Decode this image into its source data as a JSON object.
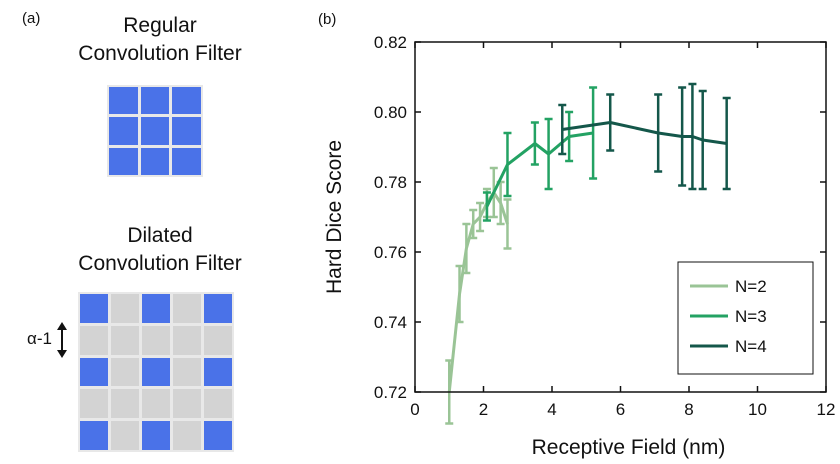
{
  "panel_a": {
    "letter": "(a)",
    "regular_title_1": "Regular",
    "regular_title_2": "Convolution Filter",
    "dilated_title_1": "Dilated",
    "dilated_title_2": "Convolution Filter",
    "alpha_label": "α-1",
    "regular_grid": {
      "rows": 3,
      "cols": 3,
      "pattern": "all-blue"
    },
    "dilated_grid": {
      "rows": 5,
      "cols": 5,
      "pattern": "blue at even rows and even cols"
    }
  },
  "panel_b": {
    "letter": "(b)"
  },
  "colors": {
    "blue_cell": "#4a72e8",
    "gray_cell": "#d3d3d3",
    "N2": "#9ac496",
    "N3": "#23a263",
    "N4": "#14574a"
  },
  "chart_data": {
    "type": "line",
    "title": "",
    "xlabel": "Receptive Field (nm)",
    "ylabel": "Hard Dice Score",
    "xlim": [
      0,
      12
    ],
    "ylim": [
      0.72,
      0.82
    ],
    "xticks": [
      0,
      2,
      4,
      6,
      8,
      10,
      12
    ],
    "yticks": [
      0.72,
      0.74,
      0.76,
      0.78,
      0.8,
      0.82
    ],
    "yticklabels": [
      "0.72",
      "0.74",
      "0.76",
      "0.78",
      "0.80",
      "0.82"
    ],
    "legend": {
      "position": "bottom-right"
    },
    "series": [
      {
        "name": "N=2",
        "color": "#9ac496",
        "points": [
          {
            "x": 1.0,
            "y": 0.72,
            "err": 0.009
          },
          {
            "x": 1.3,
            "y": 0.748,
            "err": 0.008
          },
          {
            "x": 1.5,
            "y": 0.761,
            "err": 0.007
          },
          {
            "x": 1.7,
            "y": 0.768,
            "err": 0.004
          },
          {
            "x": 1.9,
            "y": 0.77,
            "err": 0.004
          },
          {
            "x": 2.1,
            "y": 0.774,
            "err": 0.004
          },
          {
            "x": 2.3,
            "y": 0.777,
            "err": 0.007
          },
          {
            "x": 2.5,
            "y": 0.774,
            "err": 0.006
          },
          {
            "x": 2.7,
            "y": 0.768,
            "err": 0.007
          }
        ]
      },
      {
        "name": "N=3",
        "color": "#23a263",
        "points": [
          {
            "x": 2.1,
            "y": 0.773,
            "err": 0.004
          },
          {
            "x": 2.7,
            "y": 0.785,
            "err": 0.009
          },
          {
            "x": 3.5,
            "y": 0.791,
            "err": 0.006
          },
          {
            "x": 3.9,
            "y": 0.788,
            "err": 0.01
          },
          {
            "x": 4.5,
            "y": 0.793,
            "err": 0.007
          },
          {
            "x": 5.2,
            "y": 0.794,
            "err": 0.013
          }
        ]
      },
      {
        "name": "N=4",
        "color": "#14574a",
        "points": [
          {
            "x": 4.3,
            "y": 0.795,
            "err": 0.007
          },
          {
            "x": 5.7,
            "y": 0.797,
            "err": 0.008
          },
          {
            "x": 7.1,
            "y": 0.794,
            "err": 0.011
          },
          {
            "x": 7.8,
            "y": 0.793,
            "err": 0.014
          },
          {
            "x": 8.1,
            "y": 0.793,
            "err": 0.015
          },
          {
            "x": 8.4,
            "y": 0.792,
            "err": 0.014
          },
          {
            "x": 9.1,
            "y": 0.791,
            "err": 0.013
          }
        ]
      }
    ]
  }
}
